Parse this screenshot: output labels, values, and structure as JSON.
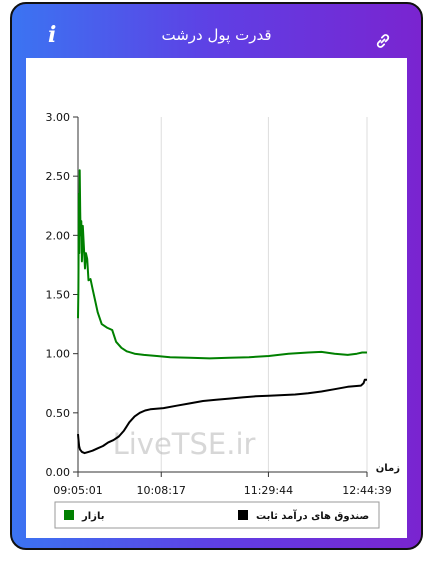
{
  "header": {
    "title": "قدرت پول درشت",
    "info_icon": "info-icon",
    "link_icon": "link-icon"
  },
  "watermark": "LiveTSE.ir",
  "chart_data": {
    "type": "line",
    "xlabel": "زمان",
    "ylabel": "",
    "ylim": [
      0,
      3
    ],
    "yticks": [
      "0.00",
      "0.50",
      "1.00",
      "1.50",
      "2.00",
      "2.50",
      "3.00"
    ],
    "xticks": [
      "09:05:01",
      "10:08:17",
      "11:29:44",
      "12:44:39"
    ],
    "grid": "vertical",
    "legend": "bottom",
    "series": [
      {
        "name": "بازار",
        "color": "#008000",
        "points": [
          [
            "09:05:01",
            1.3
          ],
          [
            "09:05:20",
            1.55
          ],
          [
            "09:05:40",
            2.35
          ],
          [
            "09:06:00",
            1.85
          ],
          [
            "09:06:20",
            2.55
          ],
          [
            "09:06:40",
            2.2
          ],
          [
            "09:07:00",
            2.0
          ],
          [
            "09:07:30",
            2.12
          ],
          [
            "09:08:00",
            1.78
          ],
          [
            "09:08:40",
            2.08
          ],
          [
            "09:09:30",
            1.9
          ],
          [
            "09:10:20",
            1.72
          ],
          [
            "09:11:00",
            1.85
          ],
          [
            "09:12:00",
            1.8
          ],
          [
            "09:13:00",
            1.62
          ],
          [
            "09:14:30",
            1.63
          ],
          [
            "09:16:00",
            1.55
          ],
          [
            "09:18:00",
            1.45
          ],
          [
            "09:20:00",
            1.35
          ],
          [
            "09:23:00",
            1.25
          ],
          [
            "09:27:00",
            1.22
          ],
          [
            "09:31:00",
            1.2
          ],
          [
            "09:34:00",
            1.1
          ],
          [
            "09:38:00",
            1.05
          ],
          [
            "09:42:00",
            1.02
          ],
          [
            "09:48:00",
            1.0
          ],
          [
            "09:55:00",
            0.99
          ],
          [
            "10:05:00",
            0.98
          ],
          [
            "10:15:00",
            0.97
          ],
          [
            "10:30:00",
            0.965
          ],
          [
            "10:45:00",
            0.96
          ],
          [
            "11:00:00",
            0.965
          ],
          [
            "11:15:00",
            0.97
          ],
          [
            "11:30:00",
            0.98
          ],
          [
            "11:45:00",
            1.0
          ],
          [
            "12:00:00",
            1.01
          ],
          [
            "12:10:00",
            1.015
          ],
          [
            "12:20:00",
            1.0
          ],
          [
            "12:30:00",
            0.99
          ],
          [
            "12:37:00",
            1.0
          ],
          [
            "12:41:00",
            1.01
          ],
          [
            "12:44:39",
            1.01
          ]
        ]
      },
      {
        "name": "صندوق های درآمد ثابت",
        "color": "#000000",
        "points": [
          [
            "09:05:01",
            0.32
          ],
          [
            "09:05:20",
            0.28
          ],
          [
            "09:05:50",
            0.22
          ],
          [
            "09:06:30",
            0.19
          ],
          [
            "09:08:00",
            0.17
          ],
          [
            "09:10:00",
            0.16
          ],
          [
            "09:13:00",
            0.17
          ],
          [
            "09:16:00",
            0.18
          ],
          [
            "09:20:00",
            0.2
          ],
          [
            "09:24:00",
            0.22
          ],
          [
            "09:28:00",
            0.25
          ],
          [
            "09:32:00",
            0.27
          ],
          [
            "09:36:00",
            0.3
          ],
          [
            "09:40:00",
            0.35
          ],
          [
            "09:44:00",
            0.42
          ],
          [
            "09:48:00",
            0.47
          ],
          [
            "09:52:00",
            0.5
          ],
          [
            "09:56:00",
            0.52
          ],
          [
            "10:00:00",
            0.53
          ],
          [
            "10:10:00",
            0.54
          ],
          [
            "10:20:00",
            0.56
          ],
          [
            "10:30:00",
            0.58
          ],
          [
            "10:40:00",
            0.6
          ],
          [
            "10:50:00",
            0.61
          ],
          [
            "11:00:00",
            0.62
          ],
          [
            "11:10:00",
            0.63
          ],
          [
            "11:20:00",
            0.64
          ],
          [
            "11:30:00",
            0.645
          ],
          [
            "11:40:00",
            0.65
          ],
          [
            "11:50:00",
            0.655
          ],
          [
            "12:00:00",
            0.665
          ],
          [
            "12:10:00",
            0.68
          ],
          [
            "12:20:00",
            0.7
          ],
          [
            "12:30:00",
            0.72
          ],
          [
            "12:40:00",
            0.73
          ],
          [
            "12:42:00",
            0.75
          ],
          [
            "12:43:00",
            0.78
          ],
          [
            "12:44:39",
            0.78
          ]
        ]
      }
    ]
  }
}
